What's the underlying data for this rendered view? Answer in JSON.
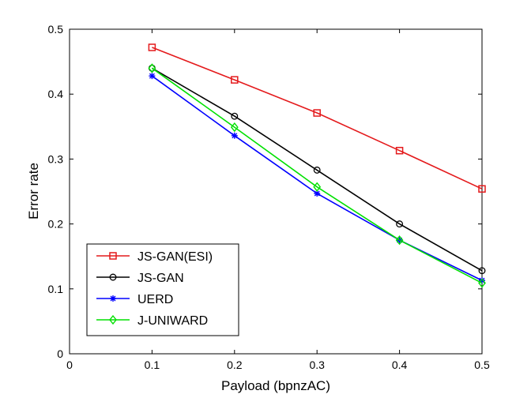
{
  "chart_data": {
    "type": "line",
    "xlabel": "Payload (bpnzAC)",
    "ylabel": "Error rate",
    "xlim": [
      0,
      0.5
    ],
    "ylim": [
      0,
      0.5
    ],
    "x_ticks": [
      "0",
      "0.1",
      "0.2",
      "0.3",
      "0.4",
      "0.5"
    ],
    "y_ticks": [
      "0",
      "0.1",
      "0.2",
      "0.3",
      "0.4",
      "0.5"
    ],
    "grid": false,
    "legend_position": "bottom-left",
    "x": [
      0.1,
      0.2,
      0.3,
      0.4,
      0.5
    ],
    "series": [
      {
        "name": "JS-GAN(ESI)",
        "color": "#e41a1c",
        "marker": "square",
        "values": [
          0.472,
          0.422,
          0.371,
          0.313,
          0.254
        ]
      },
      {
        "name": "JS-GAN",
        "color": "#000000",
        "marker": "circle",
        "values": [
          0.44,
          0.366,
          0.283,
          0.2,
          0.128
        ]
      },
      {
        "name": "UERD",
        "color": "#0000ff",
        "marker": "asterisk",
        "values": [
          0.428,
          0.336,
          0.247,
          0.175,
          0.113
        ]
      },
      {
        "name": "J-UNIWARD",
        "color": "#00e000",
        "marker": "diamond",
        "values": [
          0.44,
          0.349,
          0.257,
          0.175,
          0.109
        ]
      }
    ]
  }
}
